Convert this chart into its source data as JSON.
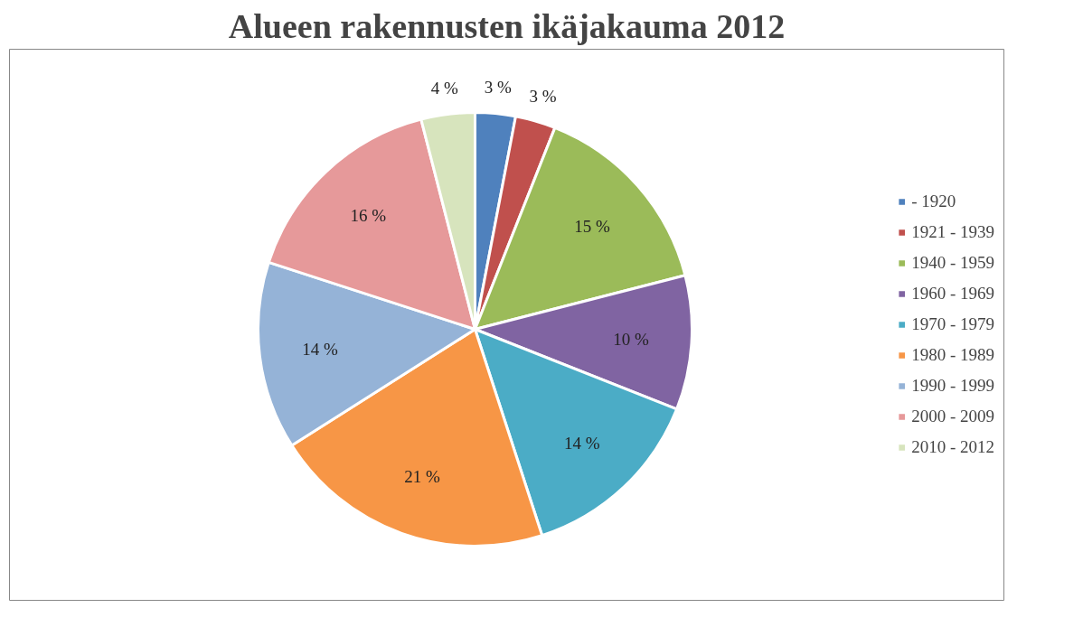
{
  "chart_data": {
    "type": "pie",
    "title": "Alueen rakennusten ikäjakauma 2012",
    "categories": [
      "- 1920",
      "1921 - 1939",
      "1940 - 1959",
      "1960 - 1969",
      "1970 - 1979",
      "1980 - 1989",
      "1990 - 1999",
      "2000 - 2009",
      "2010 - 2012"
    ],
    "values": [
      3,
      3,
      15,
      10,
      14,
      21,
      14,
      16,
      4
    ],
    "colors": [
      "#4f81bd",
      "#c0504d",
      "#9bbb59",
      "#8064a2",
      "#4bacc6",
      "#f79646",
      "#95b3d7",
      "#e6999a",
      "#d7e4bd"
    ],
    "value_labels": [
      "3 %",
      "3 %",
      "15 %",
      "10 %",
      "14 %",
      "21 %",
      "14 %",
      "16 %",
      "4 %"
    ],
    "legend": "right"
  }
}
